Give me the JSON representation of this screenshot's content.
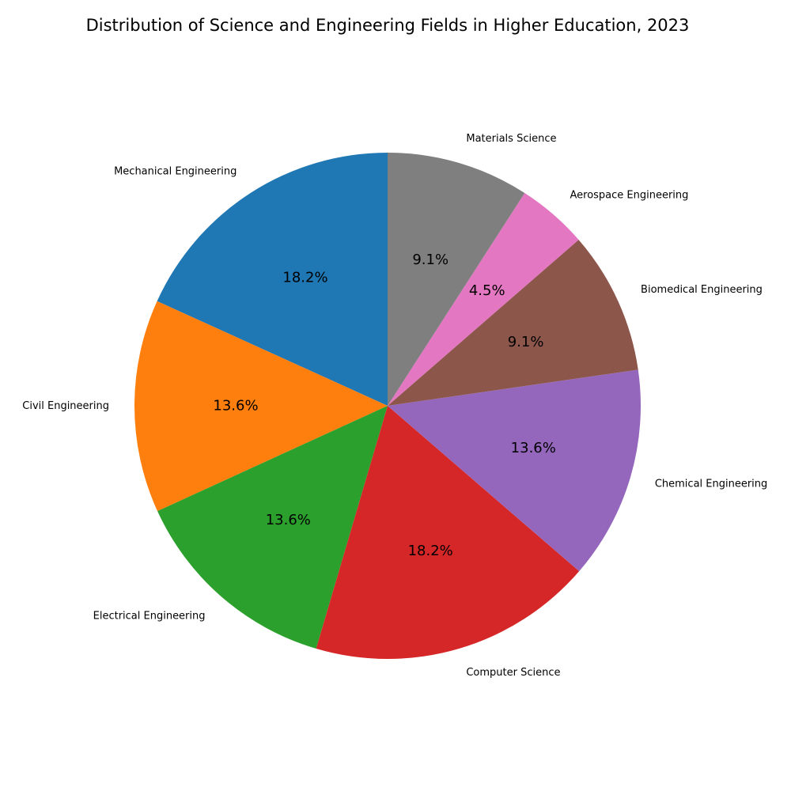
{
  "chart_data": {
    "type": "pie",
    "title": "Distribution of Science and Engineering Fields in Higher Education, 2023",
    "start_angle_deg": 90,
    "direction": "counterclockwise",
    "slices": [
      {
        "label": "Mechanical Engineering",
        "percent": 18.2,
        "pct_text": "18.2%",
        "color": "#1f77b4"
      },
      {
        "label": "Civil Engineering",
        "percent": 13.6,
        "pct_text": "13.6%",
        "color": "#ff7f0e"
      },
      {
        "label": "Electrical Engineering",
        "percent": 13.6,
        "pct_text": "13.6%",
        "color": "#2ca02c"
      },
      {
        "label": "Computer Science",
        "percent": 18.2,
        "pct_text": "18.2%",
        "color": "#d62728"
      },
      {
        "label": "Chemical Engineering",
        "percent": 13.6,
        "pct_text": "13.6%",
        "color": "#9467bd"
      },
      {
        "label": "Biomedical Engineering",
        "percent": 9.1,
        "pct_text": "9.1%",
        "color": "#8c564b"
      },
      {
        "label": "Aerospace Engineering",
        "percent": 4.5,
        "pct_text": "4.5%",
        "color": "#e377c2"
      },
      {
        "label": "Materials Science",
        "percent": 9.1,
        "pct_text": "9.1%",
        "color": "#7f7f7f"
      }
    ]
  }
}
